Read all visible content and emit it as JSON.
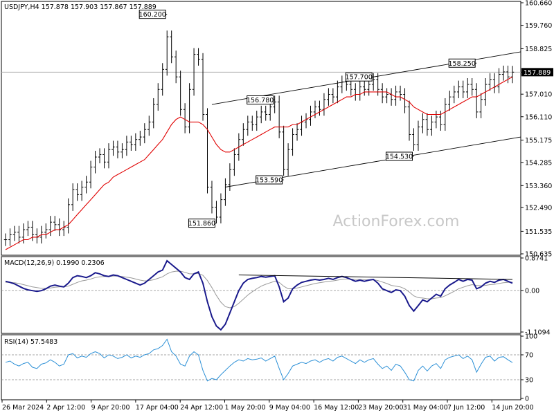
{
  "chart_data": {
    "type": "line",
    "symbol": "USDJPY",
    "timeframe": "H4",
    "ohlc_header": {
      "open": "157.878",
      "high": "157.903",
      "low": "157.867",
      "close": "157.889"
    },
    "header_label": "USDJPY,H4  157.878 157.903 157.867 157.889",
    "watermark": "ActionForex.com",
    "price_axis": {
      "ticks": [
        "160.660",
        "159.760",
        "158.825",
        "157.890",
        "157.010",
        "156.110",
        "155.175",
        "154.285",
        "153.360",
        "152.490",
        "151.535",
        "150.635"
      ],
      "range": [
        150.635,
        160.66
      ],
      "current_price": 157.889,
      "current_price_label": "157.889"
    },
    "time_axis": {
      "ticks": [
        "26 Mar 2024",
        "2 Apr 12:00",
        "9 Apr 20:00",
        "17 Apr 04:00",
        "24 Apr 12:00",
        "1 May 20:00",
        "9 May 04:00",
        "16 May 12:00",
        "23 May 20:00",
        "31 May 04:00",
        "7 Jun 12:00",
        "14 Jun 20:00"
      ]
    },
    "price_series": {
      "name": "USDJPY",
      "values": [
        151.2,
        151.4,
        151.5,
        151.3,
        151.6,
        151.7,
        151.4,
        151.3,
        151.5,
        151.6,
        151.9,
        151.8,
        151.6,
        151.7,
        152.6,
        153.2,
        153.0,
        153.3,
        153.5,
        154.1,
        154.5,
        154.6,
        154.3,
        154.8,
        154.9,
        154.7,
        154.8,
        155.1,
        155.0,
        155.2,
        155.3,
        155.6,
        155.9,
        156.6,
        157.2,
        158.0,
        159.3,
        158.5,
        157.7,
        156.4,
        155.7,
        157.2,
        158.6,
        158.4,
        156.2,
        153.3,
        152.5,
        152.1,
        152.8,
        153.4,
        154.0,
        154.6,
        155.2,
        155.6,
        155.9,
        155.8,
        156.1,
        156.3,
        156.2,
        156.5,
        156.7,
        155.5,
        154.0,
        154.8,
        155.4,
        155.6,
        155.9,
        156.0,
        156.3,
        156.5,
        156.4,
        156.8,
        157.0,
        156.9,
        157.3,
        157.5,
        157.4,
        157.2,
        157.0,
        157.3,
        157.2,
        157.4,
        157.6,
        157.2,
        156.9,
        157.0,
        156.8,
        157.1,
        157.0,
        156.5,
        155.4,
        155.0,
        155.7,
        156.0,
        155.6,
        155.9,
        156.1,
        155.8,
        156.6,
        156.9,
        157.1,
        157.3,
        157.1,
        157.4,
        157.2,
        156.3,
        156.8,
        157.4,
        157.6,
        157.3,
        157.8,
        157.9,
        157.7,
        157.889
      ]
    },
    "moving_average": {
      "name": "",
      "values": [
        150.8,
        150.9,
        151.0,
        151.1,
        151.2,
        151.2,
        151.3,
        151.3,
        151.4,
        151.4,
        151.5,
        151.6,
        151.6,
        151.7,
        151.8,
        152.0,
        152.2,
        152.4,
        152.6,
        152.8,
        153.0,
        153.2,
        153.4,
        153.5,
        153.7,
        153.8,
        153.9,
        154.0,
        154.1,
        154.2,
        154.3,
        154.4,
        154.6,
        154.8,
        155.0,
        155.2,
        155.5,
        155.8,
        156.0,
        156.1,
        156.0,
        155.9,
        155.9,
        155.9,
        155.8,
        155.6,
        155.3,
        155.0,
        154.8,
        154.7,
        154.7,
        154.8,
        154.9,
        155.0,
        155.1,
        155.2,
        155.3,
        155.4,
        155.5,
        155.6,
        155.7,
        155.7,
        155.7,
        155.7,
        155.8,
        155.8,
        155.9,
        156.0,
        156.1,
        156.2,
        156.3,
        156.4,
        156.5,
        156.6,
        156.7,
        156.8,
        156.9,
        156.9,
        157.0,
        157.0,
        157.1,
        157.1,
        157.1,
        157.1,
        157.1,
        157.1,
        157.0,
        156.9,
        156.9,
        156.8,
        156.7,
        156.5,
        156.4,
        156.3,
        156.2,
        156.2,
        156.2,
        156.2,
        156.3,
        156.4,
        156.5,
        156.6,
        156.7,
        156.8,
        156.9,
        156.9,
        157.0,
        157.1,
        157.2,
        157.3,
        157.4,
        157.5,
        157.6,
        157.7
      ]
    },
    "channel": {
      "upper": {
        "start": 156.6,
        "end": 158.7
      },
      "lower": {
        "start": 153.3,
        "end": 155.3
      }
    },
    "price_annotations": [
      {
        "label": "160.200",
        "value": 160.2,
        "index": 36
      },
      {
        "label": "151.860",
        "value": 151.86,
        "index": 47
      },
      {
        "label": "156.780",
        "value": 156.78,
        "index": 60
      },
      {
        "label": "153.590",
        "value": 153.59,
        "index": 62
      },
      {
        "label": "157.700",
        "value": 157.7,
        "index": 82
      },
      {
        "label": "154.530",
        "value": 154.53,
        "index": 91
      },
      {
        "label": "158.250",
        "value": 158.25,
        "index": 105
      }
    ],
    "macd": {
      "label": "MACD(12,26,9) 0.1990 0.2306",
      "ticks": [
        "0.8741",
        "0.00",
        "-1.1094"
      ],
      "range": [
        -1.1094,
        0.8741
      ],
      "macd_values": [
        0.25,
        0.22,
        0.18,
        0.12,
        0.06,
        0.02,
        0.0,
        -0.02,
        0.0,
        0.05,
        0.12,
        0.15,
        0.12,
        0.1,
        0.2,
        0.35,
        0.4,
        0.38,
        0.35,
        0.4,
        0.48,
        0.45,
        0.4,
        0.38,
        0.42,
        0.4,
        0.35,
        0.3,
        0.25,
        0.2,
        0.15,
        0.2,
        0.3,
        0.4,
        0.5,
        0.55,
        0.8,
        0.7,
        0.6,
        0.5,
        0.35,
        0.3,
        0.45,
        0.5,
        0.2,
        -0.3,
        -0.7,
        -0.95,
        -1.05,
        -0.9,
        -0.6,
        -0.3,
        0.0,
        0.2,
        0.3,
        0.33,
        0.35,
        0.38,
        0.36,
        0.38,
        0.4,
        0.1,
        -0.3,
        -0.2,
        0.05,
        0.15,
        0.22,
        0.25,
        0.28,
        0.3,
        0.28,
        0.3,
        0.33,
        0.3,
        0.35,
        0.38,
        0.35,
        0.3,
        0.25,
        0.28,
        0.25,
        0.28,
        0.3,
        0.2,
        0.05,
        0.0,
        -0.05,
        0.02,
        0.0,
        -0.15,
        -0.4,
        -0.55,
        -0.4,
        -0.25,
        -0.3,
        -0.2,
        -0.1,
        -0.15,
        0.05,
        0.15,
        0.22,
        0.3,
        0.25,
        0.3,
        0.28,
        0.05,
        0.1,
        0.2,
        0.25,
        0.22,
        0.28,
        0.3,
        0.25,
        0.199
      ],
      "signal_values": [
        0.22,
        0.22,
        0.21,
        0.19,
        0.16,
        0.13,
        0.1,
        0.08,
        0.06,
        0.06,
        0.07,
        0.09,
        0.1,
        0.1,
        0.12,
        0.17,
        0.22,
        0.26,
        0.28,
        0.31,
        0.35,
        0.37,
        0.38,
        0.38,
        0.39,
        0.39,
        0.38,
        0.36,
        0.34,
        0.31,
        0.28,
        0.26,
        0.27,
        0.29,
        0.33,
        0.37,
        0.45,
        0.5,
        0.52,
        0.52,
        0.49,
        0.45,
        0.45,
        0.46,
        0.41,
        0.27,
        0.08,
        -0.13,
        -0.31,
        -0.43,
        -0.46,
        -0.43,
        -0.34,
        -0.23,
        -0.12,
        -0.03,
        0.05,
        0.12,
        0.17,
        0.21,
        0.25,
        0.22,
        0.12,
        0.05,
        0.05,
        0.07,
        0.1,
        0.13,
        0.16,
        0.19,
        0.21,
        0.23,
        0.25,
        0.26,
        0.28,
        0.3,
        0.31,
        0.31,
        0.3,
        0.3,
        0.29,
        0.29,
        0.29,
        0.27,
        0.23,
        0.19,
        0.14,
        0.12,
        0.1,
        0.05,
        -0.04,
        -0.14,
        -0.19,
        -0.2,
        -0.22,
        -0.22,
        -0.2,
        -0.19,
        -0.14,
        -0.08,
        -0.02,
        0.05,
        0.09,
        0.13,
        0.16,
        0.14,
        0.13,
        0.14,
        0.16,
        0.17,
        0.19,
        0.21,
        0.22,
        0.2306
      ],
      "trendline": {
        "start_index": 52,
        "start_value": 0.42,
        "end_index": 113,
        "end_value": 0.3
      }
    },
    "rsi": {
      "label": "RSI(14) 57.5483",
      "ticks": [
        "100",
        "70",
        "30",
        "0"
      ],
      "range": [
        0,
        100
      ],
      "levels": [
        70,
        30
      ],
      "values": [
        58,
        60,
        55,
        52,
        56,
        58,
        50,
        48,
        55,
        57,
        62,
        58,
        52,
        55,
        70,
        72,
        65,
        68,
        66,
        72,
        75,
        72,
        65,
        70,
        68,
        64,
        66,
        70,
        65,
        68,
        66,
        70,
        72,
        78,
        80,
        85,
        95,
        75,
        68,
        55,
        52,
        68,
        75,
        70,
        45,
        28,
        32,
        30,
        38,
        45,
        52,
        58,
        62,
        60,
        64,
        62,
        63,
        65,
        60,
        64,
        68,
        48,
        30,
        40,
        52,
        55,
        58,
        56,
        60,
        62,
        58,
        62,
        64,
        60,
        66,
        68,
        64,
        60,
        56,
        62,
        58,
        62,
        64,
        55,
        48,
        52,
        45,
        55,
        52,
        42,
        30,
        28,
        45,
        52,
        44,
        52,
        56,
        48,
        62,
        66,
        68,
        70,
        64,
        68,
        62,
        42,
        55,
        66,
        68,
        60,
        66,
        67,
        62,
        57.5483
      ]
    }
  }
}
